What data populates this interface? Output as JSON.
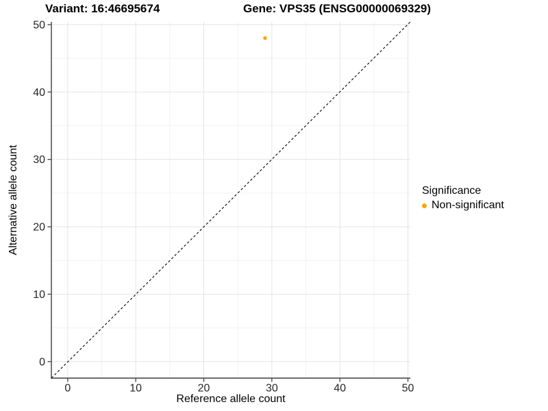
{
  "titles": {
    "variant": "Variant: 16:46695674",
    "gene": "Gene: VPS35 (ENSG00000069329)"
  },
  "chart_data": {
    "type": "scatter",
    "title_left": "Variant: 16:46695674",
    "title_right": "Gene: VPS35 (ENSG00000069329)",
    "xlabel": "Reference allele count",
    "ylabel": "Alternative allele count",
    "xlim": [
      -2.4,
      50.35
    ],
    "ylim": [
      -2.45,
      50.4
    ],
    "x_ticks": [
      0,
      10,
      20,
      30,
      40,
      50
    ],
    "y_ticks": [
      0,
      10,
      20,
      30,
      40,
      50
    ],
    "x_minor_ticks": [
      5,
      15,
      25,
      35,
      45
    ],
    "y_minor_ticks": [
      5,
      15,
      25,
      35,
      45
    ],
    "grid": true,
    "identity_line": {
      "slope": 1,
      "intercept": 0,
      "style": "dashed",
      "color": "#000000"
    },
    "points": [
      {
        "x": 29,
        "y": 48,
        "series": "Non-significant"
      }
    ],
    "legend": {
      "title": "Significance",
      "position": "right",
      "items": [
        {
          "label": "Non-significant",
          "color": "#FFA500"
        }
      ]
    }
  }
}
